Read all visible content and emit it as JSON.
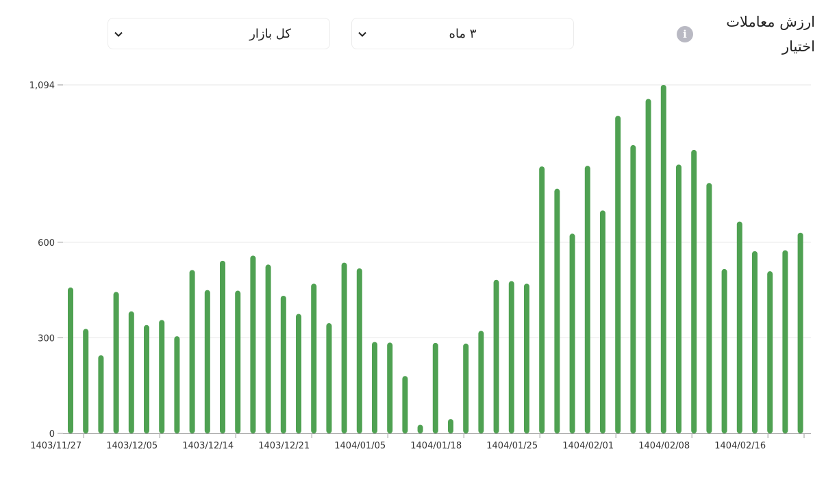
{
  "header": {
    "title_line1": "ارزش معاملات",
    "title_line2": "اختیار",
    "info_icon": "info-icon",
    "period_select": "۳ ماه",
    "market_select": "کل بازار"
  },
  "colors": {
    "bar": "#4fa152",
    "grid": "#e6e6e6",
    "axis": "#999999"
  },
  "chart_data": {
    "type": "bar",
    "title": "ارزش معاملات اختیار",
    "xlabel": "",
    "ylabel": "",
    "ylim": [
      0,
      1094
    ],
    "yticks": [
      0,
      300,
      600,
      1094
    ],
    "ytick_labels": [
      "0",
      "300",
      "600",
      "1,094"
    ],
    "xtick_labels": [
      "1403/11/27",
      "1403/12/05",
      "1403/12/14",
      "1403/12/21",
      "1404/01/05",
      "1404/01/18",
      "1404/01/25",
      "1404/02/01",
      "1404/02/08",
      "1404/02/16"
    ],
    "xtick_positions": [
      1,
      6,
      11,
      16,
      21,
      26,
      31,
      36,
      41,
      46
    ],
    "values": [
      458,
      328,
      245,
      444,
      383,
      340,
      356,
      305,
      513,
      450,
      542,
      448,
      558,
      530,
      432,
      375,
      470,
      346,
      536,
      518,
      287,
      285,
      180,
      27,
      284,
      45,
      282,
      322,
      482,
      478,
      470,
      838,
      768,
      627,
      840,
      700,
      997,
      905,
      1050,
      1094,
      844,
      890,
      786,
      516,
      665,
      572,
      509,
      575,
      630
    ],
    "grid": true,
    "legend": "none"
  }
}
